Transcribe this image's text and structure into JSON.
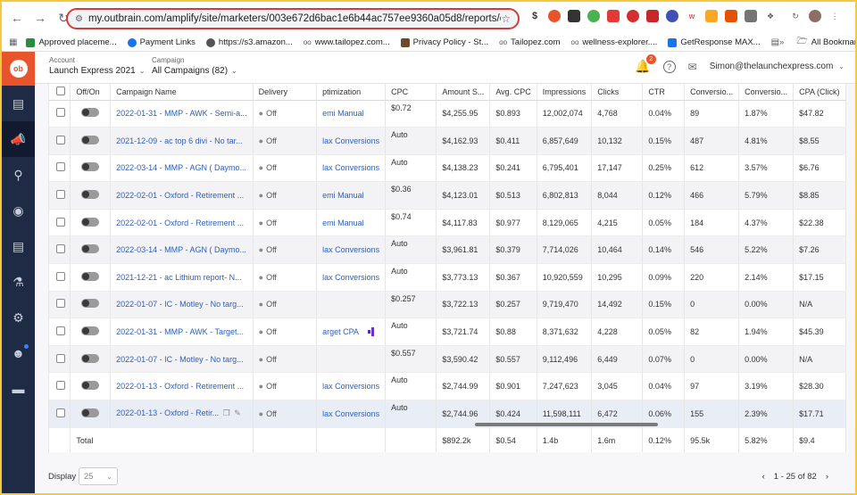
{
  "browser": {
    "url": "my.outbrain.com/amplify/site/marketers/003e672d6bac1e6b44ac757ee9360a05d8/reports/campaigns?fro...",
    "bookmarks": [
      {
        "label": "Approved placeme...",
        "color": "#2e8b3d"
      },
      {
        "label": "Payment Links",
        "color": "#1a73e8"
      },
      {
        "label": "https://s3.amazon...",
        "color": "#555555"
      },
      {
        "label": "www.tailopez.com...",
        "color": "#555555"
      },
      {
        "label": "Privacy Policy - St...",
        "color": "#6b4b2a"
      },
      {
        "label": "Tailopez.com",
        "color": "#555555"
      },
      {
        "label": "wellness-explorer....",
        "color": "#555555"
      },
      {
        "label": "GetResponse MAX...",
        "color": "#1a73e8"
      }
    ],
    "all_bookmarks": "All Bookmarks"
  },
  "header": {
    "account_label": "Account",
    "account_value": "Launch Express 2021",
    "campaign_label": "Campaign",
    "campaign_value": "All Campaigns (82)",
    "notification_count": "2",
    "user_email": "Simon@thelaunchexpress.com"
  },
  "table": {
    "columns": {
      "onoff": "Off/On",
      "name": "Campaign Name",
      "delivery": "Delivery",
      "optimization": "ptimization",
      "cpc": "CPC",
      "amount": "Amount S...",
      "avg_cpc": "Avg. CPC",
      "impressions": "Impressions",
      "clicks": "Clicks",
      "ctr": "CTR",
      "conversions": "Conversio...",
      "conv_rate": "Conversio...",
      "cpa": "CPA (Click)"
    },
    "rows": [
      {
        "name": "2022-01-31 - MMP - AWK - Semi-a...",
        "delivery": "Off",
        "optimization": "emi Manual",
        "cpc": "$0.72",
        "amount": "$4,255.95",
        "avg_cpc": "$0.893",
        "impressions": "12,002,074",
        "clicks": "4,768",
        "ctr": "0.04%",
        "conversions": "89",
        "conv_rate": "1.87%",
        "cpa": "$47.82"
      },
      {
        "name": "2021-12-09 - ac top 6 divi - No tar...",
        "delivery": "Off",
        "optimization": "lax Conversions",
        "cpc": "Auto",
        "amount": "$4,162.93",
        "avg_cpc": "$0.411",
        "impressions": "6,857,649",
        "clicks": "10,132",
        "ctr": "0.15%",
        "conversions": "487",
        "conv_rate": "4.81%",
        "cpa": "$8.55"
      },
      {
        "name": "2022-03-14 - MMP - AGN ( Daymo...",
        "delivery": "Off",
        "optimization": "lax Conversions",
        "cpc": "Auto",
        "amount": "$4,138.23",
        "avg_cpc": "$0.241",
        "impressions": "6,795,401",
        "clicks": "17,147",
        "ctr": "0.25%",
        "conversions": "612",
        "conv_rate": "3.57%",
        "cpa": "$6.76"
      },
      {
        "name": "2022-02-01 - Oxford - Retirement ...",
        "delivery": "Off",
        "optimization": "emi Manual",
        "cpc": "$0.36",
        "amount": "$4,123.01",
        "avg_cpc": "$0.513",
        "impressions": "6,802,813",
        "clicks": "8,044",
        "ctr": "0.12%",
        "conversions": "466",
        "conv_rate": "5.79%",
        "cpa": "$8.85"
      },
      {
        "name": "2022-02-01 - Oxford - Retirement ...",
        "delivery": "Off",
        "optimization": "emi Manual",
        "cpc": "$0.74",
        "amount": "$4,117.83",
        "avg_cpc": "$0.977",
        "impressions": "8,129,065",
        "clicks": "4,215",
        "ctr": "0.05%",
        "conversions": "184",
        "conv_rate": "4.37%",
        "cpa": "$22.38"
      },
      {
        "name": "2022-03-14 - MMP - AGN ( Daymo...",
        "delivery": "Off",
        "optimization": "lax Conversions",
        "cpc": "Auto",
        "amount": "$3,961.81",
        "avg_cpc": "$0.379",
        "impressions": "7,714,026",
        "clicks": "10,464",
        "ctr": "0.14%",
        "conversions": "546",
        "conv_rate": "5.22%",
        "cpa": "$7.26"
      },
      {
        "name": "2021-12-21 - ac Lithium report- N...",
        "delivery": "Off",
        "optimization": "lax Conversions",
        "cpc": "Auto",
        "amount": "$3,773.13",
        "avg_cpc": "$0.367",
        "impressions": "10,920,559",
        "clicks": "10,295",
        "ctr": "0.09%",
        "conversions": "220",
        "conv_rate": "2.14%",
        "cpa": "$17.15"
      },
      {
        "name": "2022-01-07 - IC - Motley - No targ...",
        "delivery": "Off",
        "optimization": "",
        "cpc": "$0.257",
        "amount": "$3,722.13",
        "avg_cpc": "$0.257",
        "impressions": "9,719,470",
        "clicks": "14,492",
        "ctr": "0.15%",
        "conversions": "0",
        "conv_rate": "0.00%",
        "cpa": "N/A"
      },
      {
        "name": "2022-01-31 - MMP - AWK - Target...",
        "delivery": "Off",
        "optimization": "arget CPA",
        "cpc": "Auto",
        "amount": "$3,721.74",
        "avg_cpc": "$0.88",
        "impressions": "8,371,632",
        "clicks": "4,228",
        "ctr": "0.05%",
        "conversions": "82",
        "conv_rate": "1.94%",
        "cpa": "$45.39"
      },
      {
        "name": "2022-01-07 - IC - Motley - No targ...",
        "delivery": "Off",
        "optimization": "",
        "cpc": "$0.557",
        "amount": "$3,590.42",
        "avg_cpc": "$0.557",
        "impressions": "9,112,496",
        "clicks": "6,449",
        "ctr": "0.07%",
        "conversions": "0",
        "conv_rate": "0.00%",
        "cpa": "N/A"
      },
      {
        "name": "2022-01-13 - Oxford - Retirement ...",
        "delivery": "Off",
        "optimization": "lax Conversions",
        "cpc": "Auto",
        "amount": "$2,744.99",
        "avg_cpc": "$0.901",
        "impressions": "7,247,623",
        "clicks": "3,045",
        "ctr": "0.04%",
        "conversions": "97",
        "conv_rate": "3.19%",
        "cpa": "$28.30"
      },
      {
        "name": "2022-01-13 - Oxford - Retir...",
        "delivery": "Off",
        "optimization": "lax Conversions",
        "cpc": "Auto",
        "amount": "$2,744.96",
        "avg_cpc": "$0.424",
        "impressions": "11,598,111",
        "clicks": "6,472",
        "ctr": "0.06%",
        "conversions": "155",
        "conv_rate": "2.39%",
        "cpa": "$17.71"
      }
    ],
    "total": {
      "label": "Total",
      "amount": "$892.2k",
      "avg_cpc": "$0.54",
      "impressions": "1.4b",
      "clicks": "1.6m",
      "ctr": "0.12%",
      "conversions": "95.5k",
      "conv_rate": "5.82%",
      "cpa": "$9.4"
    }
  },
  "footer": {
    "display_label": "Display",
    "display_value": "25",
    "page_range": "1 - 25 of 82"
  }
}
